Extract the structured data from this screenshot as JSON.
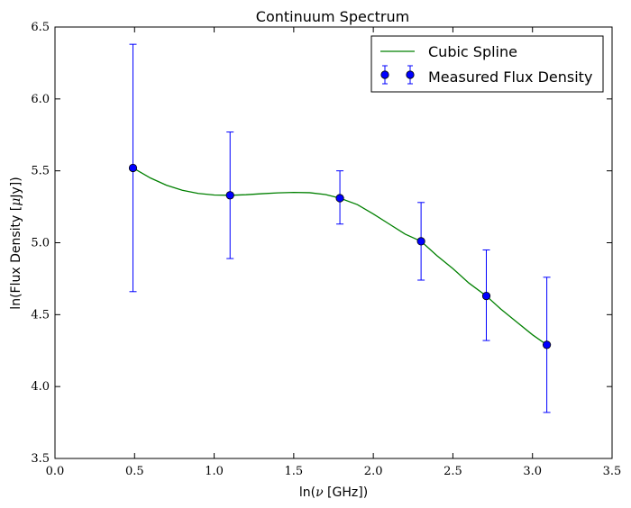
{
  "chart_data": {
    "type": "scatter",
    "title": "Continuum Spectrum",
    "xlabel_prefix": "ln(",
    "xlabel_var": "ν",
    "xlabel_unit": " [GHz])",
    "ylabel_prefix": "ln(Flux Density [",
    "ylabel_var": "μ",
    "ylabel_unit": "Jy])",
    "xlim": [
      0.0,
      3.5
    ],
    "ylim": [
      3.5,
      6.5
    ],
    "x_ticks": [
      "0.0",
      "0.5",
      "1.0",
      "1.5",
      "2.0",
      "2.5",
      "3.0",
      "3.5"
    ],
    "y_ticks": [
      "3.5",
      "4.0",
      "4.5",
      "5.0",
      "5.5",
      "6.0",
      "6.5"
    ],
    "grid": false,
    "legend_position": "top-right",
    "series": [
      {
        "name": "Cubic Spline",
        "kind": "line",
        "color": "#008000",
        "x": [
          0.49,
          0.6,
          0.7,
          0.8,
          0.9,
          1.0,
          1.1,
          1.2,
          1.3,
          1.4,
          1.5,
          1.6,
          1.7,
          1.79,
          1.9,
          2.0,
          2.1,
          2.2,
          2.3,
          2.4,
          2.5,
          2.6,
          2.71,
          2.8,
          2.9,
          3.0,
          3.09
        ],
        "y": [
          5.52,
          5.45,
          5.4,
          5.365,
          5.343,
          5.332,
          5.33,
          5.334,
          5.341,
          5.347,
          5.35,
          5.348,
          5.335,
          5.31,
          5.265,
          5.2,
          5.13,
          5.06,
          5.01,
          4.91,
          4.82,
          4.72,
          4.63,
          4.54,
          4.45,
          4.36,
          4.29
        ]
      },
      {
        "name": "Measured Flux Density",
        "kind": "errorbar",
        "color": "#0000ff",
        "x": [
          0.49,
          1.1,
          1.79,
          2.3,
          2.71,
          3.09
        ],
        "y": [
          5.52,
          5.33,
          5.31,
          5.01,
          4.63,
          4.29
        ],
        "y_lower": [
          4.66,
          4.89,
          5.13,
          4.74,
          4.32,
          3.82
        ],
        "y_upper": [
          6.38,
          5.77,
          5.5,
          5.28,
          4.95,
          4.76
        ]
      }
    ]
  }
}
